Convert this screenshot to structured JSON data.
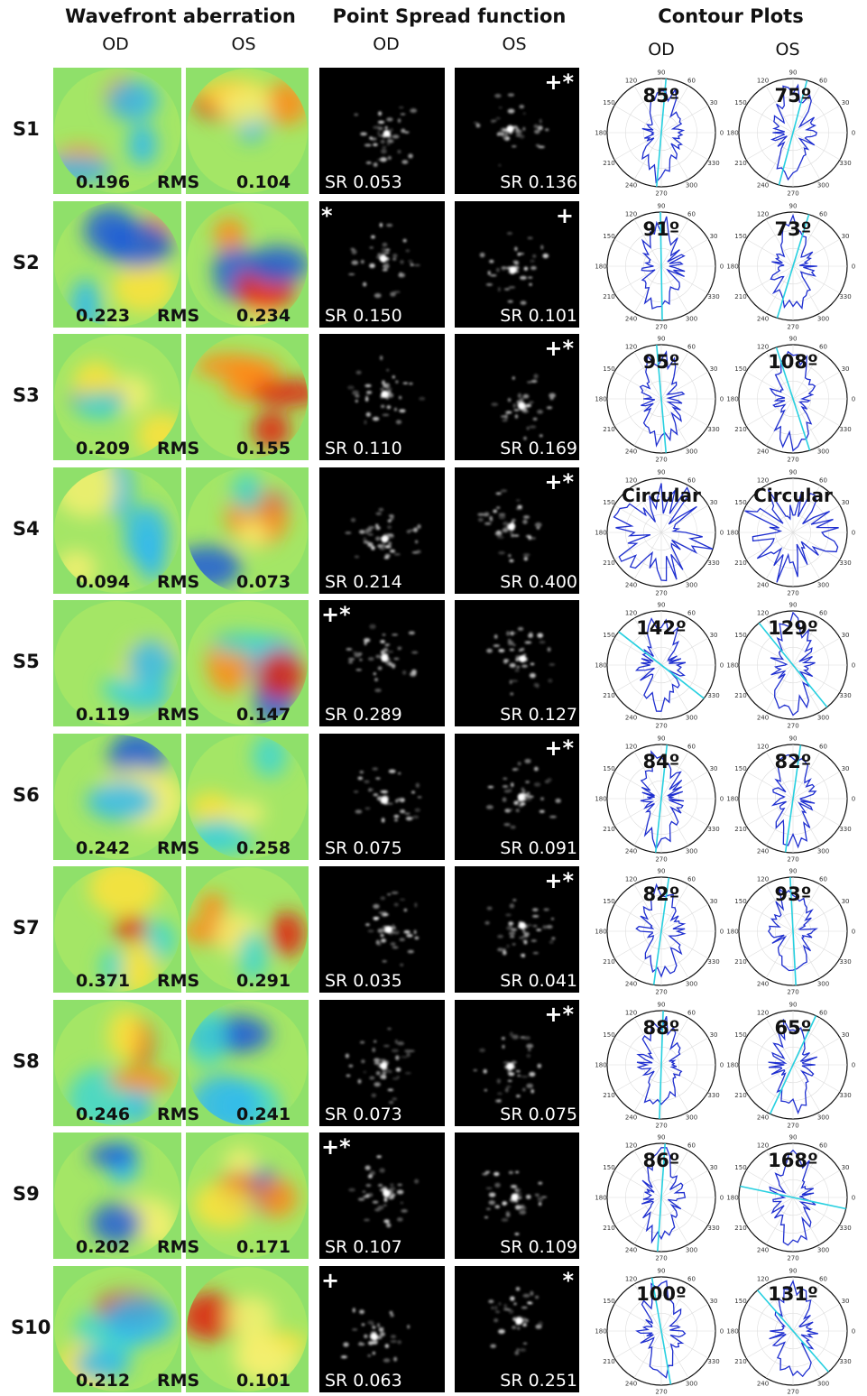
{
  "headers": {
    "wavefront": "Wavefront aberration",
    "psf": "Point Spread function",
    "contour": "Contour Plots",
    "od": "OD",
    "os": "OS"
  },
  "rms_label": "RMS",
  "polar_ticks": [
    "90",
    "60",
    "30",
    "0",
    "330",
    "300",
    "270",
    "240",
    "210",
    "180",
    "150",
    "120"
  ],
  "rows": [
    {
      "id": "S1",
      "wf_od": "0.196",
      "wf_os": "0.104",
      "sr_od": "SR 0.053",
      "sr_os": "SR 0.136",
      "mark_od": "",
      "mark_os": "+*",
      "angle_od": "85º",
      "angle_os": "75º"
    },
    {
      "id": "S2",
      "wf_od": "0.223",
      "wf_os": "0.234",
      "sr_od": "SR 0.150",
      "sr_os": "SR 0.101",
      "mark_od": "*",
      "mark_os": "+",
      "angle_od": "91º",
      "angle_os": "73º"
    },
    {
      "id": "S3",
      "wf_od": "0.209",
      "wf_os": "0.155",
      "sr_od": "SR 0.110",
      "sr_os": "SR 0.169",
      "mark_od": "",
      "mark_os": "+*",
      "angle_od": "95º",
      "angle_os": "108º"
    },
    {
      "id": "S4",
      "wf_od": "0.094",
      "wf_os": "0.073",
      "sr_od": "SR 0.214",
      "sr_os": "SR 0.400",
      "mark_od": "",
      "mark_os": "+*",
      "angle_od": "Circular",
      "angle_os": "Circular"
    },
    {
      "id": "S5",
      "wf_od": "0.119",
      "wf_os": "0.147",
      "sr_od": "SR 0.289",
      "sr_os": "SR 0.127",
      "mark_od": "+*",
      "mark_os": "",
      "angle_od": "142º",
      "angle_os": "129º"
    },
    {
      "id": "S6",
      "wf_od": "0.242",
      "wf_os": "0.258",
      "sr_od": "SR 0.075",
      "sr_os": "SR 0.091",
      "mark_od": "",
      "mark_os": "+*",
      "angle_od": "84º",
      "angle_os": "82º"
    },
    {
      "id": "S7",
      "wf_od": "0.371",
      "wf_os": "0.291",
      "sr_od": "SR 0.035",
      "sr_os": "SR 0.041",
      "mark_od": "",
      "mark_os": "+*",
      "angle_od": "82º",
      "angle_os": "93º"
    },
    {
      "id": "S8",
      "wf_od": "0.246",
      "wf_os": "0.241",
      "sr_od": "SR 0.073",
      "sr_os": "SR 0.075",
      "mark_od": "",
      "mark_os": "+*",
      "angle_od": "88º",
      "angle_os": "65º"
    },
    {
      "id": "S9",
      "wf_od": "0.202",
      "wf_os": "0.171",
      "sr_od": "SR 0.107",
      "sr_os": "SR 0.109",
      "mark_od": "+*",
      "mark_os": "",
      "angle_od": "86º",
      "angle_os": "168º"
    },
    {
      "id": "S10",
      "wf_od": "0.212",
      "wf_os": "0.101",
      "sr_od": "SR 0.063",
      "sr_os": "SR 0.251",
      "mark_od": "+",
      "mark_os": "*",
      "angle_od": "100º",
      "angle_os": "131º"
    }
  ],
  "colors": {
    "polar_line": "#1f2fd0",
    "polar_axis": "#27d0e0",
    "wavefront_bg": "#8fe06a"
  }
}
